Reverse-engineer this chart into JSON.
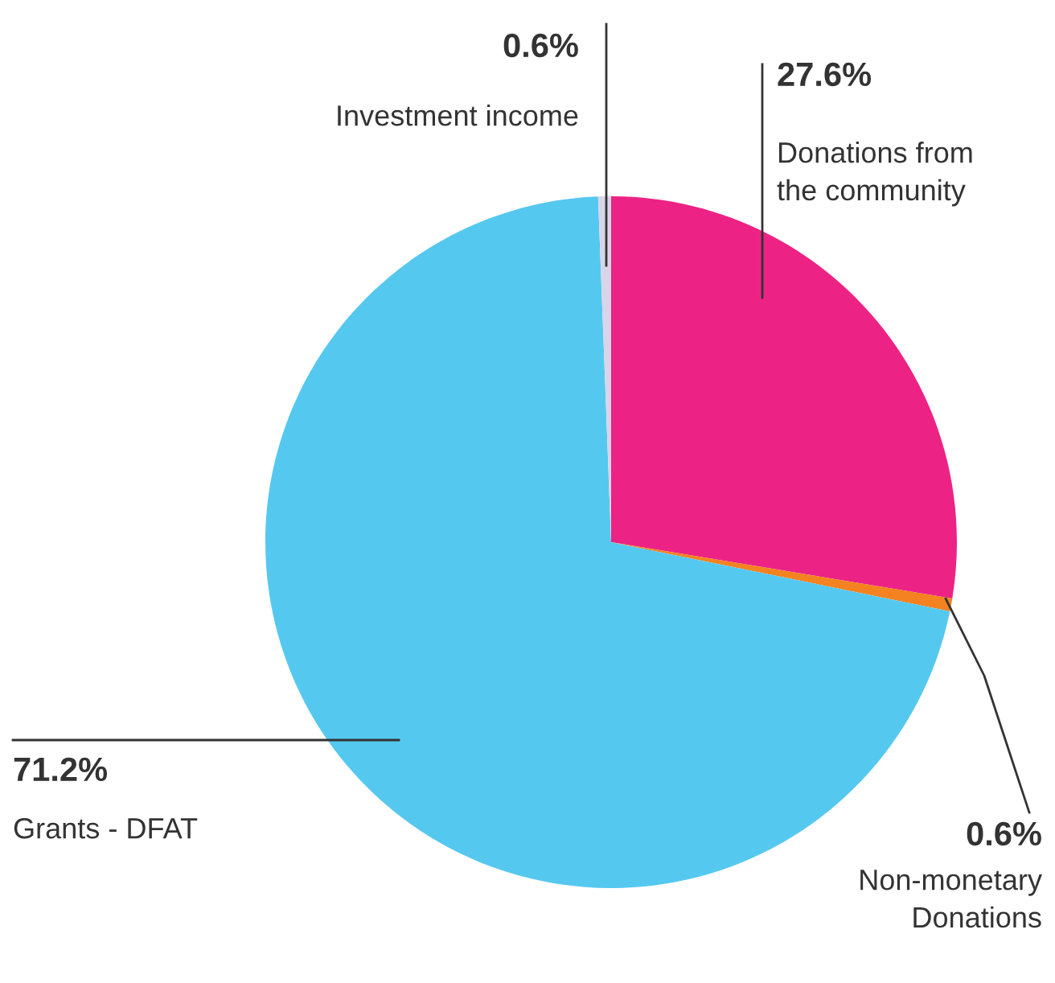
{
  "chart_data": {
    "type": "pie",
    "categories": [
      "Donations from\nthe community",
      "Non-monetary\nDonations",
      "Grants - DFAT",
      "Investment income"
    ],
    "values": [
      27.6,
      0.6,
      71.2,
      0.6
    ],
    "colors": [
      "#ec2385",
      "#f58220",
      "#55c8f0",
      "#d9d5e8"
    ],
    "value_labels": [
      "27.6%",
      "0.6%",
      "71.2%",
      "0.6%"
    ],
    "legend": false
  }
}
